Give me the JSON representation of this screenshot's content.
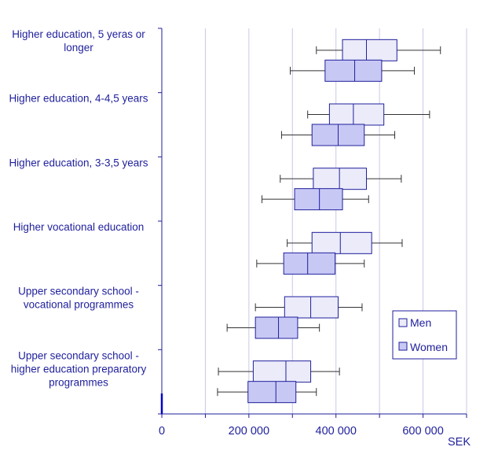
{
  "chart_data": {
    "type": "boxplot",
    "orientation": "horizontal",
    "xlabel": "SEK",
    "xlim": [
      0,
      700000
    ],
    "xticks": [
      0,
      200000,
      400000,
      600000
    ],
    "xtick_labels": [
      "0",
      "200 000",
      "400 000",
      "600 000"
    ],
    "grid": "vertical",
    "legend_position": "right",
    "categories": [
      [
        "Higher education, 5 yeras or",
        "longer"
      ],
      [
        "Higher education, 4-4,5 years"
      ],
      [
        "Higher education, 3-3,5 years"
      ],
      [
        "Higher vocational education"
      ],
      [
        "Upper secondary school -",
        "vocational programmes"
      ],
      [
        "Upper secondary school -",
        "higher education preparatory",
        "programmes"
      ]
    ],
    "series": [
      {
        "name": "Men",
        "color": "#ebebfa",
        "stats": [
          {
            "whisker_low": 355000,
            "q1": 415000,
            "median": 470000,
            "q3": 540000,
            "whisker_high": 640000
          },
          {
            "whisker_low": 335000,
            "q1": 385000,
            "median": 440000,
            "q3": 510000,
            "whisker_high": 615000
          },
          {
            "whisker_low": 272000,
            "q1": 348000,
            "median": 408000,
            "q3": 470000,
            "whisker_high": 550000
          },
          {
            "whisker_low": 288000,
            "q1": 345000,
            "median": 410000,
            "q3": 482000,
            "whisker_high": 552000
          },
          {
            "whisker_low": 215000,
            "q1": 282000,
            "median": 342000,
            "q3": 405000,
            "whisker_high": 460000
          },
          {
            "whisker_low": 130000,
            "q1": 210000,
            "median": 285000,
            "q3": 342000,
            "whisker_high": 408000
          }
        ]
      },
      {
        "name": "Women",
        "color": "#c8c8f5",
        "stats": [
          {
            "whisker_low": 295000,
            "q1": 375000,
            "median": 443000,
            "q3": 505000,
            "whisker_high": 580000
          },
          {
            "whisker_low": 275000,
            "q1": 345000,
            "median": 405000,
            "q3": 465000,
            "whisker_high": 535000
          },
          {
            "whisker_low": 230000,
            "q1": 305000,
            "median": 362000,
            "q3": 415000,
            "whisker_high": 475000
          },
          {
            "whisker_low": 218000,
            "q1": 280000,
            "median": 335000,
            "q3": 398000,
            "whisker_high": 465000
          },
          {
            "whisker_low": 150000,
            "q1": 215000,
            "median": 268000,
            "q3": 312000,
            "whisker_high": 362000
          },
          {
            "whisker_low": 128000,
            "q1": 198000,
            "median": 262000,
            "q3": 308000,
            "whisker_high": 355000
          }
        ]
      }
    ],
    "colors": {
      "axis": "#1f1f9c",
      "grid": "#c8c8e6",
      "box_stroke": "#1f1f9c",
      "whisker": "#333333",
      "text": "#1f1f9c"
    }
  }
}
